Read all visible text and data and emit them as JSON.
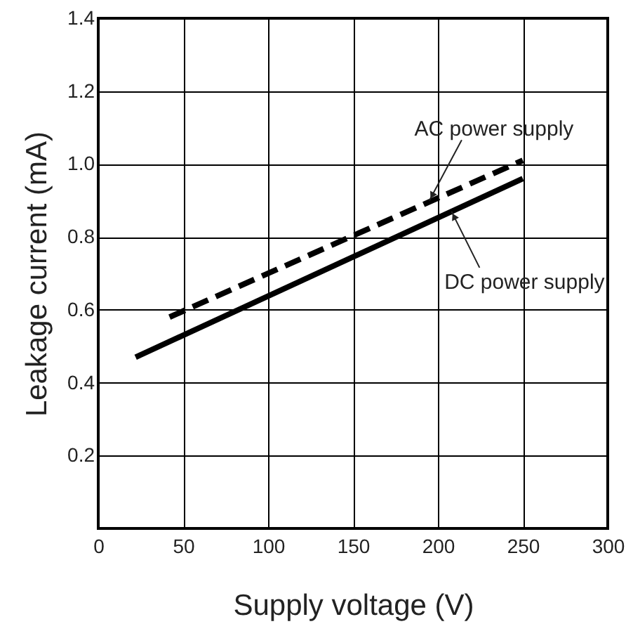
{
  "chart_data": {
    "type": "line",
    "xlabel": "Supply voltage (V)",
    "ylabel": "Leakage current (mA)",
    "series": [
      {
        "color": "#000000",
        "line_style": "dashed",
        "x": [
          42,
          250
        ],
        "values": [
          0.58,
          1.01
        ]
      },
      {
        "color": "#000000",
        "line_style": "solid",
        "x": [
          22,
          250
        ],
        "values": [
          0.47,
          0.96
        ]
      }
    ],
    "xlim": [
      0,
      300
    ],
    "ylim": [
      0,
      1.4
    ],
    "xticks": [
      0,
      50,
      100,
      150,
      200,
      250,
      300
    ],
    "yticks": [
      0.2,
      0.4,
      0.6,
      0.8,
      {
        "value": 1,
        "label": "1.0"
      },
      1.2,
      1.4
    ],
    "grid": true,
    "annotations": [
      {
        "text": "AC power supply",
        "x": 195,
        "y": 0.9
      },
      {
        "text": "DC power supply",
        "x": 208,
        "y": 0.87
      }
    ]
  }
}
